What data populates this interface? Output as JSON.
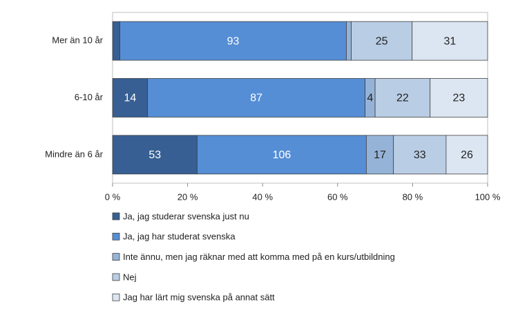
{
  "chart_data": {
    "type": "stacked-bar-100",
    "categories": [
      "Mer än 10 år",
      "6-10 år",
      "Mindre än 6 år"
    ],
    "series": [
      {
        "name": "Ja, jag studerar svenska just nu",
        "color": "#375f93",
        "values": [
          3,
          14,
          53
        ]
      },
      {
        "name": "Ja, jag har studerat svenska",
        "color": "#558ed5",
        "values": [
          93,
          87,
          106
        ]
      },
      {
        "name": "Inte ännu, men jag räknar med att komma med på en kurs/utbildning",
        "color": "#95b3d7",
        "values": [
          2,
          4,
          17
        ]
      },
      {
        "name": "Nej",
        "color": "#b9cde5",
        "values": [
          25,
          22,
          33
        ]
      },
      {
        "name": "Jag har lärt mig svenska på annat sätt",
        "color": "#dce6f2",
        "values": [
          31,
          23,
          26
        ]
      }
    ],
    "xlim": [
      0,
      100
    ],
    "xticks": [
      {
        "value": 0,
        "label": "0 %"
      },
      {
        "value": 20,
        "label": "20 %"
      },
      {
        "value": 40,
        "label": "40 %"
      },
      {
        "value": 60,
        "label": "60 %"
      },
      {
        "value": 80,
        "label": "80 %"
      },
      {
        "value": 100,
        "label": "100 %"
      }
    ]
  }
}
